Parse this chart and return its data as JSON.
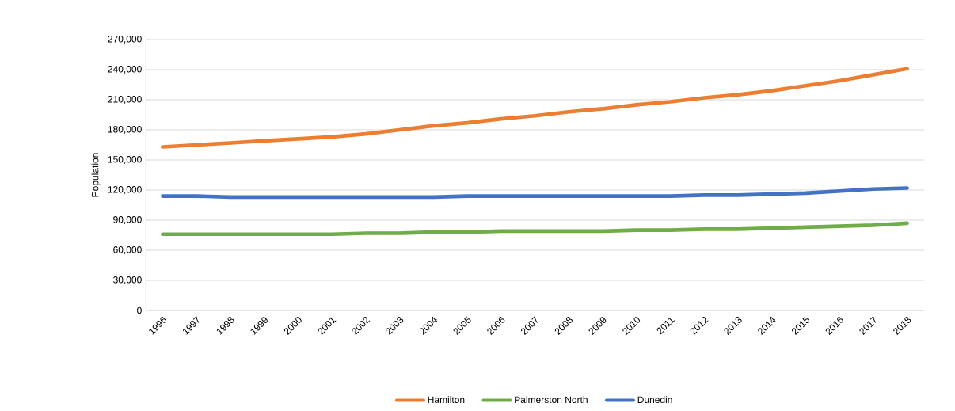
{
  "chart_data": {
    "type": "line",
    "ylabel": "Population",
    "categories": [
      "1996",
      "1997",
      "1998",
      "1999",
      "2000",
      "2001",
      "2002",
      "2003",
      "2004",
      "2005",
      "2006",
      "2007",
      "2008",
      "2009",
      "2010",
      "2011",
      "2012",
      "2013",
      "2014",
      "2015",
      "2016",
      "2017",
      "2018"
    ],
    "series": [
      {
        "name": "Hamilton",
        "color": "#ed7d31",
        "values": [
          163000,
          165000,
          167000,
          169000,
          171000,
          173000,
          176000,
          180000,
          184000,
          187000,
          191000,
          194000,
          198000,
          201000,
          205000,
          208000,
          212000,
          215000,
          219000,
          224000,
          229000,
          235000,
          241000
        ]
      },
      {
        "name": "Palmerston North",
        "color": "#70ad47",
        "values": [
          76000,
          76000,
          76000,
          76000,
          76000,
          76000,
          77000,
          77000,
          78000,
          78000,
          79000,
          79000,
          79000,
          79000,
          80000,
          80000,
          81000,
          81000,
          82000,
          83000,
          84000,
          85000,
          87000
        ]
      },
      {
        "name": "Dunedin",
        "color": "#4472c4",
        "values": [
          114000,
          114000,
          113000,
          113000,
          113000,
          113000,
          113000,
          113000,
          113000,
          114000,
          114000,
          114000,
          114000,
          114000,
          114000,
          114000,
          115000,
          115000,
          116000,
          117000,
          119000,
          121000,
          122000
        ]
      }
    ],
    "ylim": [
      0,
      270000
    ],
    "yticks": [
      {
        "value": 0,
        "label": "0"
      },
      {
        "value": 30000,
        "label": "30,000"
      },
      {
        "value": 60000,
        "label": "60,000"
      },
      {
        "value": 90000,
        "label": "90,000"
      },
      {
        "value": 120000,
        "label": "120,000"
      },
      {
        "value": 150000,
        "label": "150,000"
      },
      {
        "value": 180000,
        "label": "180,000"
      },
      {
        "value": 210000,
        "label": "210,000"
      },
      {
        "value": 240000,
        "label": "240,000"
      },
      {
        "value": 270000,
        "label": "270,000"
      }
    ],
    "grid": "y",
    "legend": "bottom",
    "line_style": "solid",
    "marker": "none"
  }
}
